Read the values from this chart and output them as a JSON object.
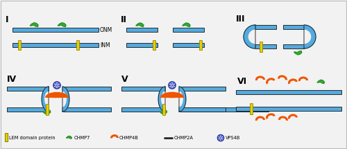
{
  "bg_color": "#f2f2f2",
  "border_color": "#bbbbbb",
  "membrane_fill": "#55aadd",
  "membrane_edge": "#111111",
  "lem_fill": "#eecc00",
  "lem_edge": "#888800",
  "chmp7_fill": "#33aa33",
  "chmp7_edge": "#226622",
  "chmp4b_color": "#ee5500",
  "chmp2a_color": "#222222",
  "vps4b_fill": "#ffffff",
  "vps4b_edge": "#2233aa",
  "vps4b_dot": "#2233aa",
  "panel_labels": [
    "I",
    "II",
    "III",
    "IV",
    "V",
    "VI"
  ],
  "onm_label": "ONM",
  "inm_label": "INM"
}
